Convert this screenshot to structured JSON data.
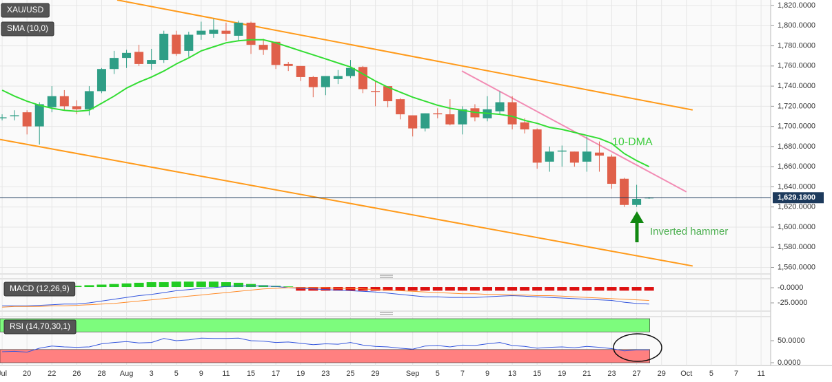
{
  "chart_data": [
    {
      "type": "candlestick",
      "categories": [
        "Jul",
        null,
        "20",
        null,
        "22",
        null,
        "26",
        null,
        "28",
        null,
        "Aug",
        null,
        "3",
        null,
        "5",
        null,
        "9",
        null,
        "11",
        null,
        "15",
        null,
        "17",
        null,
        "19",
        null,
        "23",
        null,
        "25",
        null,
        "29",
        null,
        null,
        "Sep",
        null,
        "5",
        null,
        "7",
        null,
        "9",
        null,
        "13",
        null,
        "15",
        null,
        "19",
        null,
        "21",
        null,
        "23",
        null,
        "27",
        null,
        "29",
        null,
        "Oct",
        null,
        "5",
        null,
        "7",
        null,
        "11"
      ],
      "xlim": [
        -0.17,
        61.77
      ],
      "ylim": [
        1553.5,
        1825.5
      ],
      "yticks": [
        {
          "value": 1560,
          "label": "1,560.0000"
        },
        {
          "value": 1580,
          "label": "1,580.0000"
        },
        {
          "value": 1600,
          "label": "1,600.0000"
        },
        {
          "value": 1620,
          "label": "1,620.0000"
        },
        {
          "value": 1640,
          "label": "1,640.0000"
        },
        {
          "value": 1660,
          "label": "1,660.0000"
        },
        {
          "value": 1680,
          "label": "1,680.0000"
        },
        {
          "value": 1700,
          "label": "1,700.0000"
        },
        {
          "value": 1720,
          "label": "1,720.0000"
        },
        {
          "value": 1740,
          "label": "1,740.0000"
        },
        {
          "value": 1760,
          "label": "1,760.0000"
        },
        {
          "value": 1780,
          "label": "1,780.0000"
        },
        {
          "value": 1800,
          "label": "1,800.0000"
        },
        {
          "value": 1820,
          "label": "1,820.0000"
        }
      ],
      "grid": true,
      "series": [
        {
          "name": "XAU/USD",
          "type": "candlestick",
          "up_color": "#2f9e86",
          "down_color": "#e0604a",
          "open": [
            1708,
            1710,
            1714,
            1700,
            1719,
            1730,
            1720,
            1717,
            1735,
            1757,
            1768,
            1774,
            1762,
            1766,
            1791,
            1775,
            1791,
            1792,
            1795,
            1790,
            1803,
            1781,
            1784,
            1762,
            1760,
            1749,
            1739,
            1747,
            1750,
            1759,
            1735,
            1740,
            1727,
            1711,
            1698,
            1713,
            1712,
            1702,
            1718,
            1708,
            1715,
            1724,
            1704,
            1697,
            1665,
            1675,
            1675,
            1665,
            1674,
            1670,
            1648,
            1622,
            1629,
            null,
            null,
            null,
            null,
            null,
            null,
            null,
            null,
            null
          ],
          "high": [
            1712,
            1716,
            1716,
            1724,
            1740,
            1736,
            1726,
            1740,
            1758,
            1775,
            1776,
            1781,
            1777,
            1795,
            1795,
            1794,
            1804,
            1807,
            1803,
            1805,
            1804,
            1787,
            1784,
            1764,
            1760,
            1750,
            1750,
            1756,
            1766,
            1760,
            1745,
            1740,
            1728,
            1711,
            1713,
            1718,
            1727,
            1720,
            1722,
            1730,
            1735,
            1730,
            1708,
            1698,
            1680,
            1681,
            1675,
            1690,
            1685,
            1672,
            1649,
            1642,
            1630,
            null,
            null,
            null,
            null,
            null,
            null,
            null,
            null,
            null
          ],
          "low": [
            1706,
            1706,
            1692,
            1682,
            1714,
            1716,
            1712,
            1711,
            1733,
            1752,
            1758,
            1760,
            1756,
            1763,
            1770,
            1769,
            1786,
            1788,
            1785,
            1785,
            1772,
            1771,
            1757,
            1755,
            1745,
            1729,
            1731,
            1742,
            1748,
            1733,
            1720,
            1719,
            1707,
            1690,
            1695,
            1708,
            1701,
            1692,
            1705,
            1705,
            1712,
            1697,
            1693,
            1658,
            1655,
            1660,
            1660,
            1655,
            1655,
            1638,
            1620,
            1620,
            1628,
            null,
            null,
            null,
            null,
            null,
            null,
            null,
            null,
            null
          ],
          "close": [
            1709,
            1711,
            1700,
            1722,
            1730,
            1720,
            1717,
            1735,
            1757,
            1768,
            1773,
            1762,
            1766,
            1792,
            1772,
            1791,
            1795,
            1796,
            1792,
            1803,
            1781,
            1776,
            1761,
            1760,
            1749,
            1739,
            1750,
            1750,
            1758,
            1737,
            1734,
            1725,
            1712,
            1698,
            1713,
            1712,
            1702,
            1717,
            1709,
            1717,
            1724,
            1702,
            1697,
            1664,
            1675,
            1676,
            1664,
            1675,
            1671,
            1643,
            1622,
            1628,
            1629.18,
            null,
            null,
            null,
            null,
            null,
            null,
            null,
            null,
            null
          ]
        },
        {
          "name": "SMA (10,0)",
          "type": "line",
          "color": "#33dd33",
          "values": [
            1736,
            1730,
            1725,
            1721,
            1718,
            1716,
            1715,
            1716,
            1723,
            1730,
            1738,
            1744,
            1749,
            1755,
            1762,
            1768,
            1775,
            1779,
            1783,
            1785,
            1786,
            1786,
            1783,
            1779,
            1775,
            1771,
            1767,
            1763,
            1759,
            1752,
            1745,
            1739,
            1734,
            1729,
            1725,
            1721,
            1718,
            1716,
            1714,
            1713,
            1712,
            1710,
            1706,
            1703,
            1699,
            1697,
            1694,
            1691,
            1688,
            1683,
            1673,
            1666,
            1660,
            null,
            null,
            null,
            null,
            null,
            null,
            null,
            null,
            null
          ]
        }
      ],
      "trendlines": [
        {
          "color": "#ff9a1a",
          "points": [
            [
              9.25,
              1825.5
            ],
            [
              55.5,
              1716.3
            ]
          ]
        },
        {
          "color": "#ff9a1a",
          "points": [
            [
              -0.17,
              1687
            ],
            [
              55.5,
              1561.4
            ]
          ]
        },
        {
          "color": "#f28cb4",
          "points": [
            [
              36.95,
              1755
            ],
            [
              55,
              1635
            ]
          ]
        }
      ],
      "last_price": {
        "value": 1629.18,
        "label": "1,629.1800",
        "color": "#1d3a5c"
      },
      "annotations": [
        {
          "text": "10-DMA",
          "color": "#3ccc3c"
        },
        {
          "text": "Inverted hammer",
          "color": "#4caf50"
        }
      ]
    },
    {
      "type": "macd",
      "title": "MACD (12,26,9)",
      "ylim": [
        -38.6,
        14.8
      ],
      "yticks": [
        {
          "value": 0,
          "label": "-0.0000"
        },
        {
          "value": -25,
          "label": "-25.0000"
        }
      ],
      "histogram": {
        "up_color": "#22cc22",
        "down_color": "#dd1111",
        "values": [
          null,
          null,
          null,
          null,
          null,
          null,
          2,
          3,
          4,
          5,
          6,
          7,
          8,
          8,
          9,
          9,
          9,
          9,
          8,
          7,
          5,
          3,
          2,
          1,
          -6,
          -6,
          -6,
          -6,
          -6,
          -6,
          -6,
          -6,
          -6,
          -6,
          -6,
          -6,
          -6,
          -6,
          -6,
          -6,
          -6,
          -6,
          -6,
          -6,
          -6,
          -6,
          -6,
          -6,
          -6,
          -6,
          -6,
          -6,
          -6
        ]
      },
      "series": [
        {
          "name": "MACD",
          "color": "#3355dd",
          "values": [
            -30,
            -30,
            -30,
            -29,
            -28,
            -27,
            -27,
            -25,
            -22,
            -19,
            -16,
            -13,
            -11,
            -8,
            -5,
            -3,
            -1,
            0,
            2,
            3,
            3,
            3,
            2,
            0,
            -1,
            -2,
            -3,
            -4,
            -5,
            -6,
            -7,
            -9,
            -11,
            -13,
            -15,
            -15,
            -16,
            -16,
            -16,
            -15,
            -14,
            -13,
            -14,
            -15,
            -16,
            -17,
            -18,
            -19,
            -20,
            -21,
            -24,
            -26,
            -27
          ]
        },
        {
          "name": "Signal",
          "color": "#ff8c2a",
          "values": [
            -32,
            -31,
            -31,
            -31,
            -30,
            -30,
            -29,
            -28,
            -27,
            -26,
            -24,
            -22,
            -20,
            -18,
            -16,
            -14,
            -12,
            -10,
            -8,
            -6,
            -4,
            -2,
            -1,
            0,
            0,
            0,
            0,
            -1,
            -1,
            -2,
            -3,
            -4,
            -5,
            -6,
            -7,
            -8,
            -9,
            -10,
            -10,
            -11,
            -11,
            -12,
            -12,
            -13,
            -13,
            -14,
            -15,
            -16,
            -17,
            -18,
            -19,
            -20,
            -21
          ]
        }
      ]
    },
    {
      "type": "rsi",
      "title": "RSI (14,70,30,1)",
      "ylim": [
        -4.7,
        104.7
      ],
      "yticks": [
        {
          "value": 50,
          "label": "50.0000"
        },
        {
          "value": 0,
          "label": "0.0000"
        }
      ],
      "bands": [
        {
          "range": [
            70,
            100
          ],
          "color": "#7dfc7d"
        },
        {
          "range": [
            0,
            30
          ],
          "color": "#ff8080"
        }
      ],
      "series": [
        {
          "name": "RSI",
          "color": "#3355dd",
          "values": [
            25,
            26,
            24,
            33,
            38,
            36,
            35,
            36,
            43,
            46,
            48,
            45,
            46,
            55,
            50,
            52,
            56,
            55,
            55,
            56,
            50,
            49,
            46,
            47,
            44,
            41,
            43,
            42,
            46,
            40,
            37,
            36,
            33,
            31,
            38,
            39,
            36,
            40,
            39,
            43,
            46,
            39,
            37,
            33,
            35,
            36,
            34,
            37,
            35,
            32,
            27,
            29,
            29
          ]
        }
      ]
    }
  ]
}
